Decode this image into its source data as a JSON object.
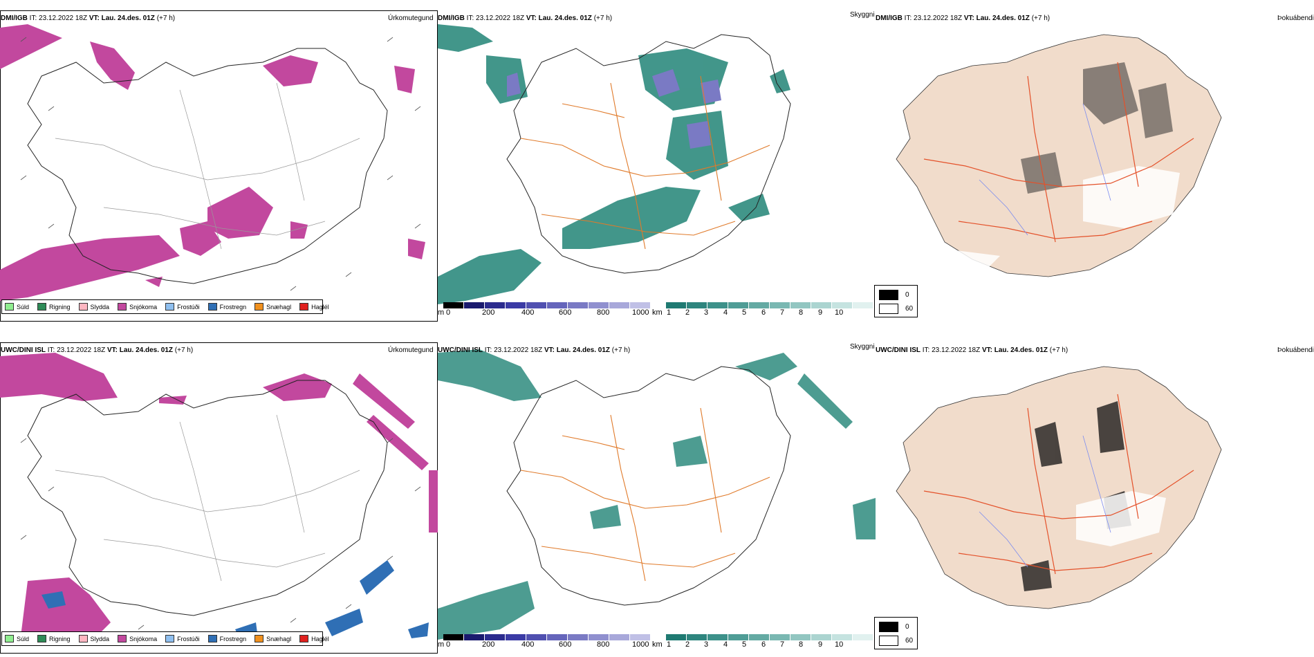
{
  "rows": [
    {
      "model": "DMI/IGB",
      "it_label": "IT:",
      "it": "23.12.2022 18Z",
      "vt_label": "VT:",
      "vt": "Lau. 24.des. 01Z",
      "lead": "(+7 h)"
    },
    {
      "model": "UWC/DINI ISL",
      "it_label": "IT:",
      "it": "23.12.2022 18Z",
      "vt_label": "VT:",
      "vt": "Lau. 24.des. 01Z",
      "lead": "(+7 h)"
    }
  ],
  "panel_titles": {
    "precip": "Úrkomutegund",
    "visibility": "Skyggni",
    "fog": "Þokuábendi"
  },
  "precip_legend": [
    {
      "label": "Súld",
      "color": "#90ee90"
    },
    {
      "label": "Rigning",
      "color": "#2e8b57"
    },
    {
      "label": "Slydda",
      "color": "#ffb6c1"
    },
    {
      "label": "Snjókoma",
      "color": "#c2489e"
    },
    {
      "label": "Frostúði",
      "color": "#8fbfef"
    },
    {
      "label": "Frostregn",
      "color": "#2f6fb5"
    },
    {
      "label": "Snæhagl",
      "color": "#f0901e"
    },
    {
      "label": "Haglél",
      "color": "#e0201e"
    }
  ],
  "visibility_m_bar": {
    "unit": "m",
    "ticks": [
      "0",
      "200",
      "400",
      "600",
      "800",
      "1000"
    ],
    "colors": [
      "#000000",
      "#1a1a6e",
      "#2b2b8e",
      "#3b3ba5",
      "#5050b0",
      "#6565bb",
      "#7a7ac4",
      "#9090cf",
      "#a8a8da",
      "#c0c0e6"
    ]
  },
  "visibility_km_bar": {
    "unit": "km",
    "ticks": [
      "1",
      "2",
      "3",
      "4",
      "5",
      "6",
      "7",
      "8",
      "9",
      "10"
    ],
    "colors": [
      "#1f7a72",
      "#2e857e",
      "#3d918a",
      "#4f9d96",
      "#64aaa3",
      "#7ab8b2",
      "#92c6c1",
      "#abd4d0",
      "#c5e3e0",
      "#e1f1ef"
    ]
  },
  "fog_legend": [
    {
      "value": "0",
      "color": "#000000"
    },
    {
      "value": "60",
      "color": "#ffffff"
    }
  ],
  "colors": {
    "snow": "#c2489e",
    "freezing_rain": "#2f6fb5",
    "vis_teal": "#2e8b7e",
    "roads": "#e07a2a",
    "land_fog": "#f1dccb",
    "rivers": "#7b8cf0"
  }
}
